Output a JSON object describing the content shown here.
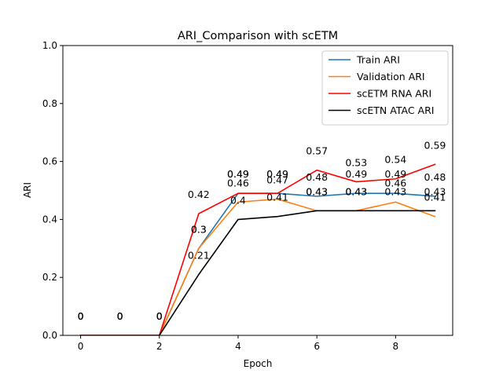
{
  "chart_data": {
    "type": "line",
    "title": "ARI_Comparison with scETM",
    "xlabel": "Epoch",
    "ylabel": "ARI",
    "x": [
      0,
      1,
      2,
      3,
      4,
      5,
      6,
      7,
      8,
      9
    ],
    "xlim": [
      -0.45,
      9.45
    ],
    "ylim": [
      0,
      1
    ],
    "x_ticks": [
      "0",
      "2",
      "4",
      "6",
      "8"
    ],
    "y_ticks": [
      "0.0",
      "0.2",
      "0.4",
      "0.6",
      "0.8",
      "1.0"
    ],
    "legend_position": "top-right",
    "grid": false,
    "series": [
      {
        "name": "Train ARI",
        "color": "#1f77b4",
        "values": [
          0,
          0,
          0,
          0.3,
          0.49,
          0.49,
          0.48,
          0.49,
          0.49,
          0.48
        ],
        "labels": [
          "0",
          "0",
          "0",
          "0.3",
          "0.49",
          "0.49",
          "0.48",
          "0.49",
          "0.49",
          "0.48"
        ]
      },
      {
        "name": "Validation ARI",
        "color": "#ff7f0e",
        "values": [
          0,
          0,
          0,
          0.3,
          0.46,
          0.47,
          0.43,
          0.43,
          0.46,
          0.41
        ],
        "labels": [
          "0",
          "0",
          "0",
          "0.3",
          "0.46",
          "0.47",
          "0.43",
          "0.43",
          "0.46",
          "0.41"
        ]
      },
      {
        "name": "scETM RNA ARI",
        "color": "#ff0000",
        "values": [
          0,
          0,
          0,
          0.42,
          0.49,
          0.49,
          0.57,
          0.53,
          0.54,
          0.59
        ],
        "labels": [
          "0",
          "0",
          "0",
          "0.42",
          "0.49",
          "0.49",
          "0.57",
          "0.53",
          "0.54",
          "0.59"
        ]
      },
      {
        "name": "scETN ATAC ARI",
        "color": "#000000",
        "values": [
          0,
          0,
          0,
          0.21,
          0.4,
          0.41,
          0.43,
          0.43,
          0.43,
          0.43
        ],
        "labels": [
          "0",
          "0",
          "0",
          "0.21",
          "0.4",
          "0.41",
          "0.43",
          "0.43",
          "0.43",
          "0.43"
        ]
      }
    ]
  }
}
